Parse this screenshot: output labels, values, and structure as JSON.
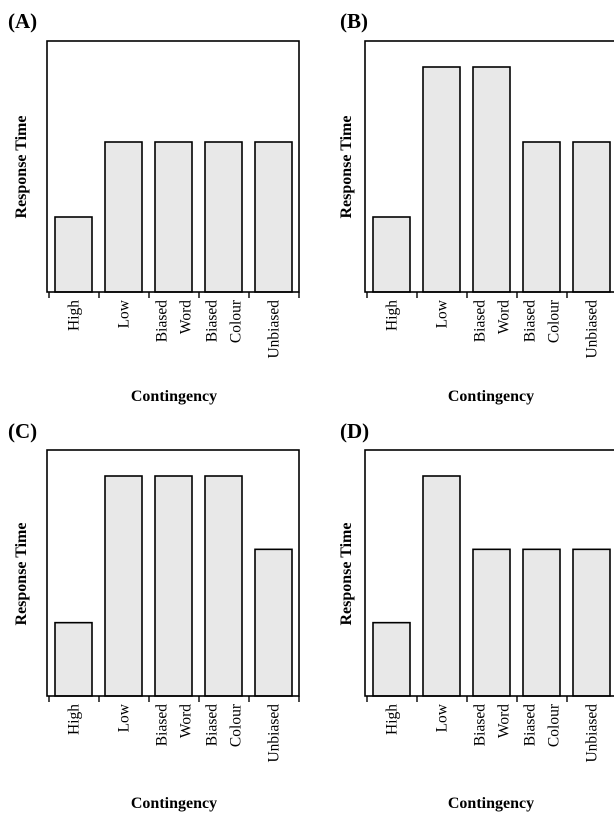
{
  "chart_data": [
    {
      "type": "bar",
      "panel_label": "(A)",
      "categories": [
        [
          "High"
        ],
        [
          "Low"
        ],
        [
          "Biased",
          "Word"
        ],
        [
          "Biased",
          "Colour"
        ],
        [
          "Unbiased"
        ]
      ],
      "values": [
        1,
        2,
        2,
        2,
        2
      ],
      "xlabel": "Contingency",
      "ylabel": "Response Time",
      "ylim": [
        0,
        3
      ]
    },
    {
      "type": "bar",
      "panel_label": "(B)",
      "categories": [
        [
          "High"
        ],
        [
          "Low"
        ],
        [
          "Biased",
          "Word"
        ],
        [
          "Biased",
          "Colour"
        ],
        [
          "Unbiased"
        ]
      ],
      "values": [
        1,
        3,
        3,
        2,
        2
      ],
      "xlabel": "Contingency",
      "ylabel": "Response Time",
      "ylim": [
        0,
        3
      ]
    },
    {
      "type": "bar",
      "panel_label": "(C)",
      "categories": [
        [
          "High"
        ],
        [
          "Low"
        ],
        [
          "Biased",
          "Word"
        ],
        [
          "Biased",
          "Colour"
        ],
        [
          "Unbiased"
        ]
      ],
      "values": [
        1,
        3,
        3,
        3,
        2
      ],
      "xlabel": "Contingency",
      "ylabel": "Response Time",
      "ylim": [
        0,
        3
      ]
    },
    {
      "type": "bar",
      "panel_label": "(D)",
      "categories": [
        [
          "High"
        ],
        [
          "Low"
        ],
        [
          "Biased",
          "Word"
        ],
        [
          "Biased",
          "Colour"
        ],
        [
          "Unbiased"
        ]
      ],
      "values": [
        1,
        3,
        2,
        2,
        2
      ],
      "xlabel": "Contingency",
      "ylabel": "Response Time",
      "ylim": [
        0,
        3
      ]
    }
  ]
}
